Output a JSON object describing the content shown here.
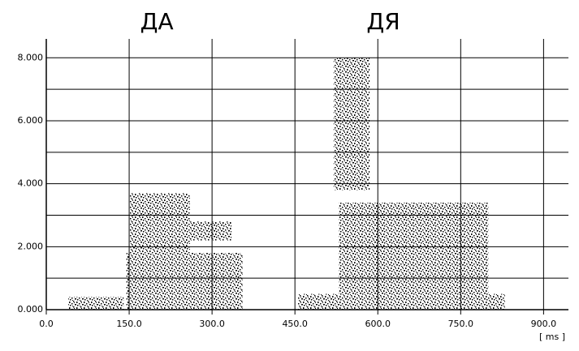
{
  "chart_data": {
    "type": "spectrogram",
    "annotations": [
      {
        "text": "ДА",
        "x": 200
      },
      {
        "text": "ДЯ",
        "x": 610
      }
    ],
    "x_unit_label": "[ ms ]",
    "xlim": [
      0,
      945
    ],
    "ylim": [
      0,
      8.6
    ],
    "xticks": [
      {
        "value": 0,
        "label": "0.0"
      },
      {
        "value": 150,
        "label": "150.0"
      },
      {
        "value": 300,
        "label": "300.0"
      },
      {
        "value": 450,
        "label": "450.0"
      },
      {
        "value": 600,
        "label": "600.0"
      },
      {
        "value": 750,
        "label": "750.0"
      },
      {
        "value": 900,
        "label": "900.0"
      }
    ],
    "yticks": [
      {
        "value": 0,
        "label": "0.000"
      },
      {
        "value": 2,
        "label": "2.000"
      },
      {
        "value": 4,
        "label": "4.000"
      },
      {
        "value": 6,
        "label": "6.000"
      },
      {
        "value": 8,
        "label": "8.000"
      }
    ],
    "minor_yticks": [
      1,
      3,
      5,
      7
    ],
    "grid": true,
    "color": "#000000",
    "regions": [
      {
        "x": [
          40,
          140
        ],
        "y": [
          0,
          0.4
        ]
      },
      {
        "x": [
          145,
          355
        ],
        "y": [
          0,
          1.8
        ]
      },
      {
        "x": [
          150,
          260
        ],
        "y": [
          1.8,
          3.7
        ]
      },
      {
        "x": [
          260,
          335
        ],
        "y": [
          2.2,
          2.8
        ]
      },
      {
        "x": [
          455,
          830
        ],
        "y": [
          0,
          0.5
        ]
      },
      {
        "x": [
          520,
          585
        ],
        "y": [
          3.8,
          8.0
        ]
      },
      {
        "x": [
          530,
          800
        ],
        "y": [
          0.5,
          3.4
        ]
      }
    ]
  }
}
